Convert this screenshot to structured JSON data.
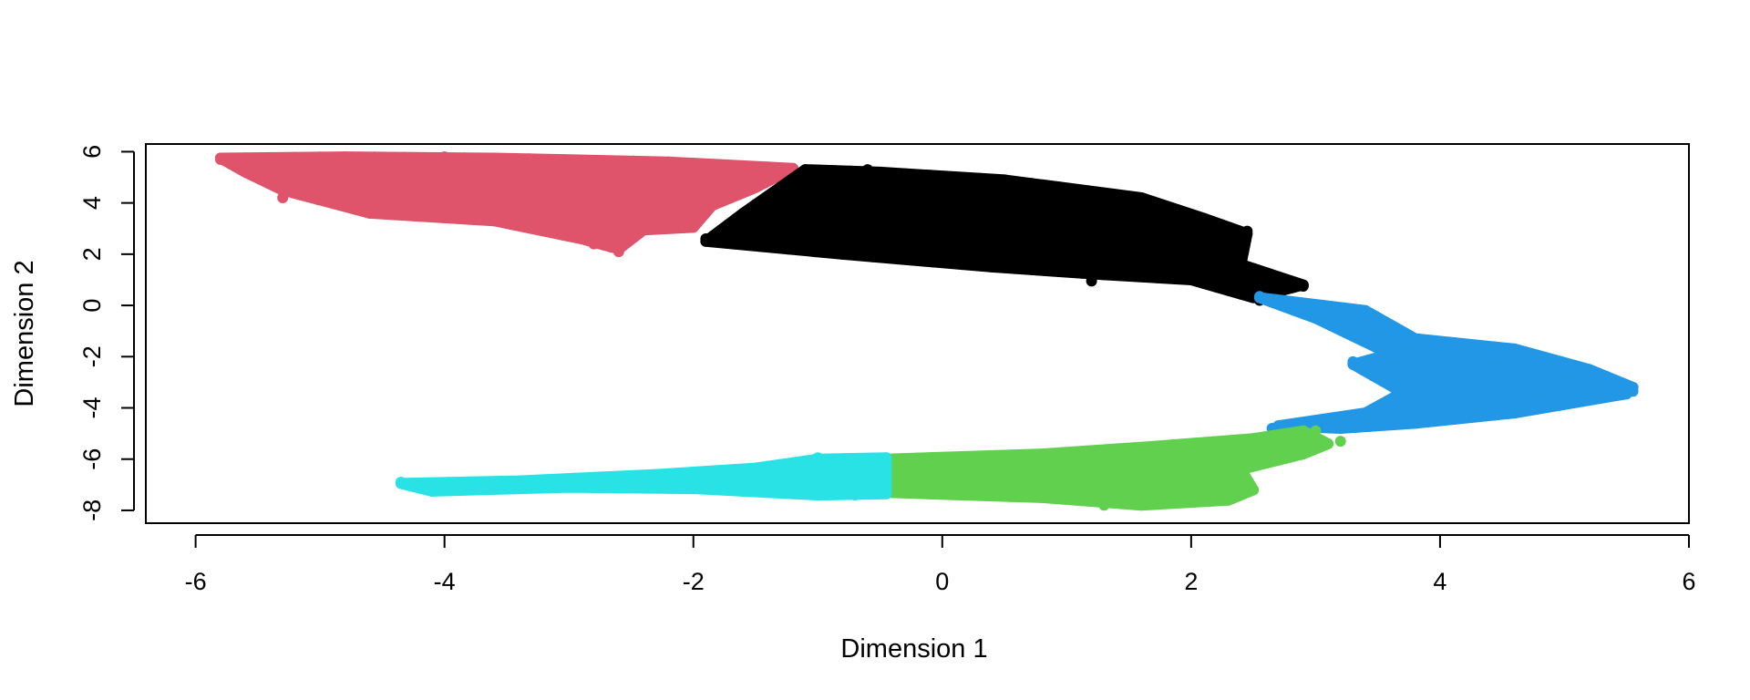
{
  "chart_data": {
    "type": "scatter",
    "title": "",
    "xlabel": "Dimension 1",
    "ylabel": "Dimension 2",
    "xlim": [
      -6.4,
      6.0
    ],
    "ylim": [
      -8.5,
      6.3
    ],
    "xticks": [
      -6,
      -4,
      -2,
      0,
      2,
      4,
      6
    ],
    "yticks": [
      -8,
      -6,
      -4,
      -2,
      0,
      2,
      4,
      6
    ],
    "grid": false,
    "legend": "none",
    "clusters": [
      {
        "color": "#DF536B",
        "outline": [
          [
            -5.8,
            5.75
          ],
          [
            -4.8,
            5.8
          ],
          [
            -3.6,
            5.75
          ],
          [
            -2.2,
            5.6
          ],
          [
            -1.2,
            5.35
          ],
          [
            -1.5,
            4.6
          ],
          [
            -1.85,
            3.9
          ],
          [
            -2.0,
            3.05
          ],
          [
            -2.4,
            2.95
          ],
          [
            -2.6,
            2.2
          ],
          [
            -2.9,
            2.6
          ],
          [
            -3.6,
            3.3
          ],
          [
            -4.6,
            3.6
          ],
          [
            -5.3,
            4.5
          ],
          [
            -5.6,
            5.2
          ]
        ],
        "points": [
          [
            -5.8,
            5.7
          ],
          [
            -5.5,
            5.3
          ],
          [
            -5.3,
            4.2
          ],
          [
            -2.6,
            2.1
          ],
          [
            -2.8,
            2.4
          ],
          [
            -1.3,
            5.3
          ],
          [
            -4.0,
            5.8
          ]
        ]
      },
      {
        "color": "#000000",
        "outline": [
          [
            -1.9,
            2.5
          ],
          [
            -1.6,
            3.6
          ],
          [
            -1.1,
            5.3
          ],
          [
            -0.5,
            5.2
          ],
          [
            0.5,
            4.9
          ],
          [
            1.6,
            4.2
          ],
          [
            2.1,
            3.4
          ],
          [
            2.45,
            2.8
          ],
          [
            2.4,
            1.6
          ],
          [
            2.9,
            0.8
          ],
          [
            2.5,
            0.3
          ],
          [
            2.0,
            1.0
          ],
          [
            1.3,
            1.2
          ],
          [
            0.4,
            1.5
          ],
          [
            -0.8,
            2.0
          ]
        ],
        "points": [
          [
            -1.9,
            2.6
          ],
          [
            2.45,
            2.9
          ],
          [
            2.9,
            0.75
          ],
          [
            2.55,
            0.2
          ],
          [
            1.2,
            0.95
          ],
          [
            -0.6,
            5.3
          ]
        ]
      },
      {
        "color": "#2297E6",
        "outline": [
          [
            2.55,
            0.3
          ],
          [
            3.4,
            -0.2
          ],
          [
            3.8,
            -1.3
          ],
          [
            4.6,
            -1.7
          ],
          [
            5.2,
            -2.5
          ],
          [
            5.55,
            -3.2
          ],
          [
            5.5,
            -3.45
          ],
          [
            4.6,
            -4.2
          ],
          [
            3.8,
            -4.6
          ],
          [
            3.2,
            -4.8
          ],
          [
            2.7,
            -4.7
          ],
          [
            3.4,
            -4.2
          ],
          [
            3.7,
            -3.4
          ],
          [
            3.3,
            -2.3
          ],
          [
            3.6,
            -1.9
          ],
          [
            3.0,
            -0.5
          ]
        ],
        "points": [
          [
            2.55,
            0.35
          ],
          [
            5.55,
            -3.35
          ],
          [
            3.3,
            -2.2
          ],
          [
            2.65,
            -4.8
          ],
          [
            5.5,
            -3.1
          ]
        ]
      },
      {
        "color": "#61D04F",
        "outline": [
          [
            -0.45,
            -6.0
          ],
          [
            0.8,
            -5.8
          ],
          [
            1.7,
            -5.5
          ],
          [
            2.5,
            -5.2
          ],
          [
            2.9,
            -4.9
          ],
          [
            3.1,
            -5.4
          ],
          [
            2.9,
            -5.8
          ],
          [
            2.4,
            -6.4
          ],
          [
            2.5,
            -7.2
          ],
          [
            2.3,
            -7.6
          ],
          [
            1.6,
            -7.8
          ],
          [
            0.8,
            -7.5
          ],
          [
            -0.45,
            -7.3
          ]
        ],
        "points": [
          [
            3.2,
            -5.3
          ],
          [
            2.5,
            -7.2
          ],
          [
            1.3,
            -7.8
          ],
          [
            2.8,
            -5.7
          ],
          [
            3.0,
            -4.9
          ]
        ]
      },
      {
        "color": "#28E2E5",
        "outline": [
          [
            -4.35,
            -6.95
          ],
          [
            -3.4,
            -6.85
          ],
          [
            -2.3,
            -6.6
          ],
          [
            -1.5,
            -6.35
          ],
          [
            -1.0,
            -6.0
          ],
          [
            -0.45,
            -5.95
          ],
          [
            -0.45,
            -7.35
          ],
          [
            -1.0,
            -7.4
          ],
          [
            -2.0,
            -7.15
          ],
          [
            -3.0,
            -7.1
          ],
          [
            -4.1,
            -7.25
          ]
        ],
        "points": [
          [
            -4.35,
            -6.9
          ],
          [
            -4.0,
            -7.2
          ],
          [
            -0.7,
            -7.4
          ],
          [
            -1.0,
            -5.95
          ]
        ]
      }
    ]
  }
}
